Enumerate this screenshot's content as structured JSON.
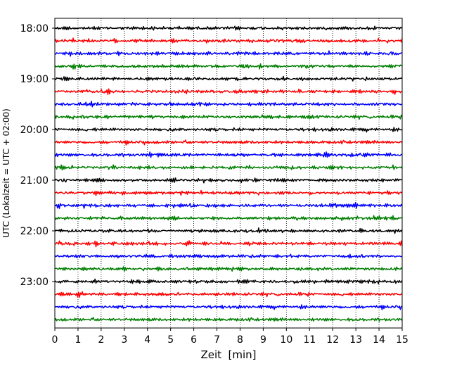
{
  "chart_data": {
    "type": "line",
    "title": "",
    "xlabel": "Zeit  [min]",
    "ylabel": "UTC (Lokalzeit = UTC + 02:00)",
    "xlim": [
      0,
      15
    ],
    "x_ticks": [
      "0",
      "1",
      "2",
      "3",
      "4",
      "5",
      "6",
      "7",
      "8",
      "9",
      "10",
      "11",
      "12",
      "13",
      "14",
      "15"
    ],
    "y_ticks": [
      "18:00",
      "19:00",
      "20:00",
      "21:00",
      "22:00",
      "23:00"
    ],
    "trace_start_times": [
      "18:00",
      "18:15",
      "18:30",
      "18:45",
      "19:00",
      "19:15",
      "19:30",
      "19:45",
      "20:00",
      "20:15",
      "20:30",
      "20:45",
      "21:00",
      "21:15",
      "21:30",
      "21:45",
      "22:00",
      "22:15",
      "22:30",
      "22:45",
      "23:00",
      "23:15",
      "23:30",
      "23:45"
    ],
    "trace_minutes_per_line": 15,
    "trace_colors": [
      "#000000",
      "#ff0000",
      "#0000ff",
      "#007f00"
    ],
    "grid": {
      "vertical": true,
      "horizontal": false,
      "style": "dotted"
    }
  }
}
